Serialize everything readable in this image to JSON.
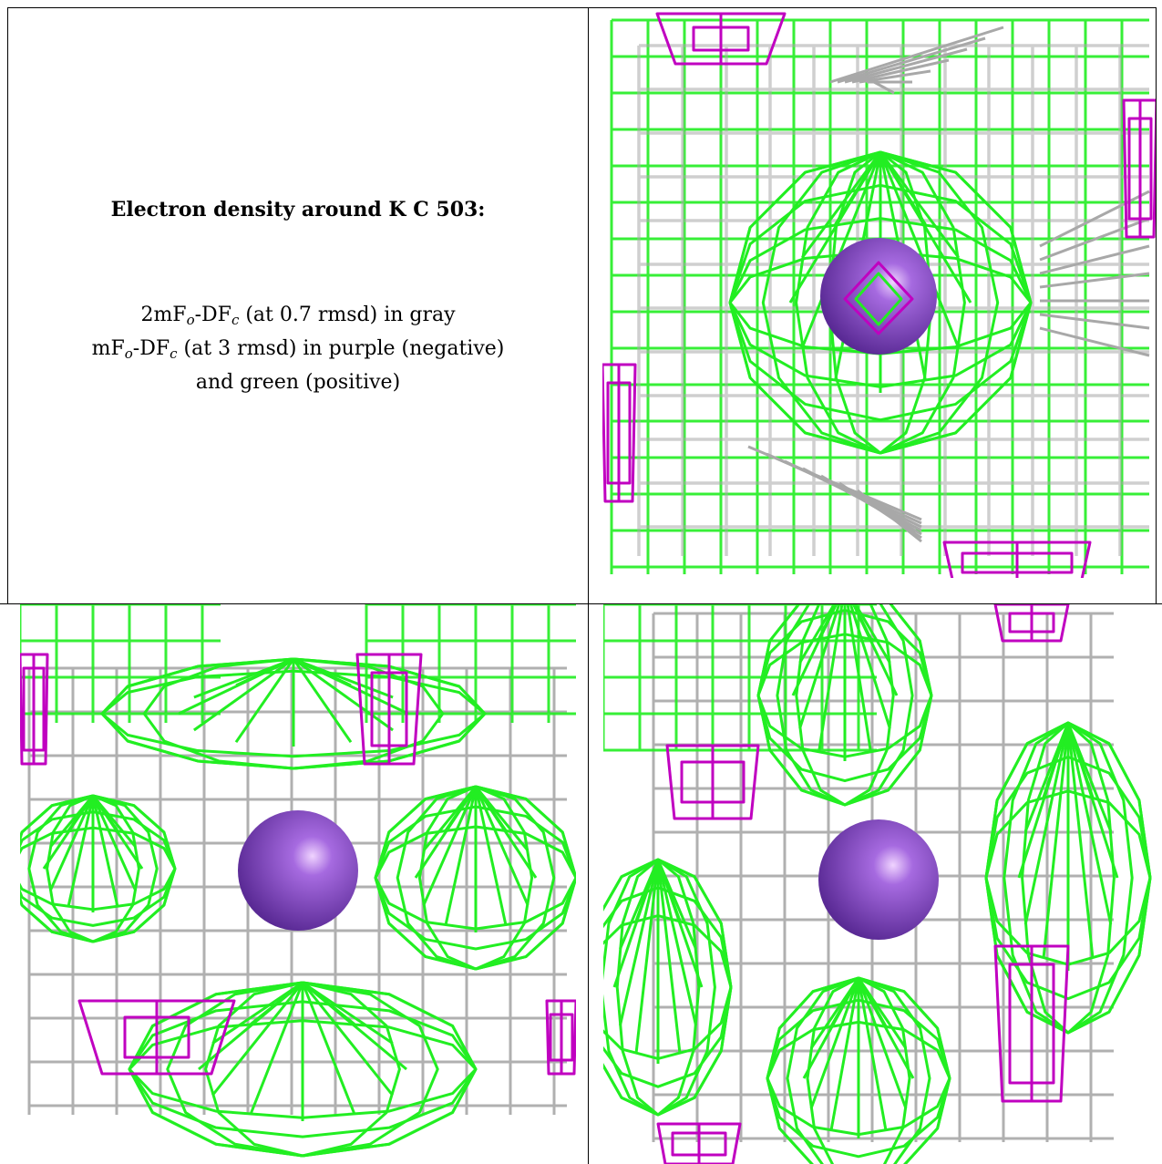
{
  "caption": {
    "title": "Electron density around K C 503:",
    "line1": {
      "prefix": "2mF",
      "sub1": "o",
      "mid": "-DF",
      "sub2": "c",
      "suffix": " (at 0.7 rmsd) in gray"
    },
    "line2": {
      "prefix": "mF",
      "sub1": "o",
      "mid": "-DF",
      "sub2": "c",
      "suffix": " (at 3 rmsd) in purple (negative)"
    },
    "line3": "and green (positive)"
  },
  "colors": {
    "gray_mesh": "#a8a8a8",
    "purple_mesh": "#c000c0",
    "green_mesh": "#22ee22",
    "ion": "#8a4fd0"
  },
  "panels": [
    {
      "id": "top-right",
      "view": "view-1"
    },
    {
      "id": "bottom-left",
      "view": "view-2"
    },
    {
      "id": "bottom-right",
      "view": "view-3"
    }
  ]
}
